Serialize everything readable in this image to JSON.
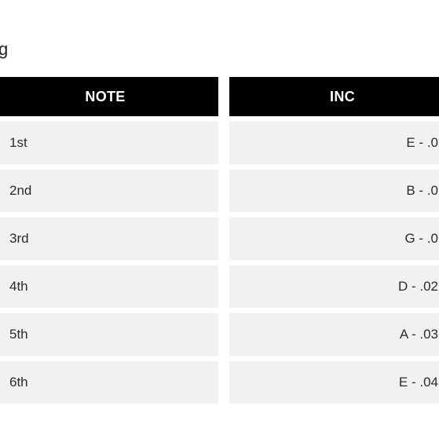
{
  "caption_suffix": "g",
  "table": {
    "header_bg": "#000000",
    "header_fg": "#ffffff",
    "cell_bg": "#f1f1f1",
    "cell_fg": "#2b2b2b",
    "columns": [
      {
        "key": "note",
        "label": "NOTE",
        "align": "left"
      },
      {
        "key": "inc",
        "label": "INC",
        "align": "right"
      }
    ],
    "rows": [
      {
        "note": "1st",
        "inc": "E - .0"
      },
      {
        "note": "2nd",
        "inc": "B - .0"
      },
      {
        "note": "3rd",
        "inc": "G - .0"
      },
      {
        "note": "4th",
        "inc": "D - .02"
      },
      {
        "note": "5th",
        "inc": "A - .03"
      },
      {
        "note": "6th",
        "inc": "E - .04"
      }
    ]
  }
}
